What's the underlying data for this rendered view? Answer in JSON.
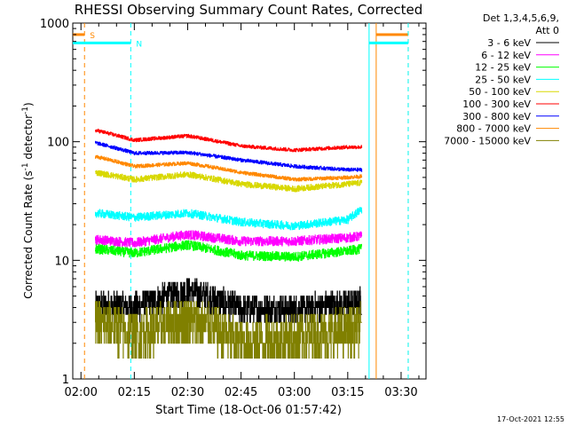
{
  "chart_data": {
    "type": "line",
    "title": "RHESSI Observing Summary Count Rates, Corrected",
    "xlabel": "Start Time (18-Oct-06 01:57:42)",
    "ylabel_main": "Corrected Count Rate (s",
    "ylabel_sup1": "-1",
    "ylabel_mid": " detector",
    "ylabel_sup2": "-1",
    "ylabel_end": ")",
    "y_scale": "log",
    "ylim": [
      1,
      1000
    ],
    "xlim": [
      "01:57:42",
      "03:37:00"
    ],
    "x_ticks": [
      "02:00",
      "02:15",
      "02:30",
      "02:45",
      "03:00",
      "03:15",
      "03:30"
    ],
    "y_ticks": [
      "1",
      "10",
      "100",
      "1000"
    ],
    "legend_header": [
      "Det 1,3,4,5,6,9,",
      "Att 0"
    ],
    "legend_position": "right",
    "series": [
      {
        "name": "3 - 6 keV",
        "color": "#000000",
        "level": 4.3,
        "noise": 0.12,
        "profile": [
          [
            "02:04",
            4.2
          ],
          [
            "02:15",
            4.0
          ],
          [
            "02:30",
            5.5
          ],
          [
            "02:45",
            3.9
          ],
          [
            "03:00",
            3.9
          ],
          [
            "03:15",
            4.3
          ],
          [
            "03:19",
            4.5
          ]
        ]
      },
      {
        "name": "6 - 12 keV",
        "color": "#ff00ff",
        "level": 15,
        "noise": 0.04,
        "profile": [
          [
            "02:04",
            15
          ],
          [
            "02:15",
            14
          ],
          [
            "02:30",
            16.5
          ],
          [
            "02:45",
            14.5
          ],
          [
            "03:00",
            14.5
          ],
          [
            "03:15",
            15.5
          ],
          [
            "03:19",
            16
          ]
        ]
      },
      {
        "name": "12 - 25 keV",
        "color": "#00ff00",
        "level": 12,
        "noise": 0.04,
        "profile": [
          [
            "02:04",
            12.5
          ],
          [
            "02:15",
            11.5
          ],
          [
            "02:30",
            13.5
          ],
          [
            "02:45",
            11
          ],
          [
            "03:00",
            10.7
          ],
          [
            "03:15",
            12
          ],
          [
            "03:19",
            12.5
          ]
        ]
      },
      {
        "name": "25 - 50 keV",
        "color": "#00ffff",
        "level": 24,
        "noise": 0.035,
        "profile": [
          [
            "02:04",
            25
          ],
          [
            "02:15",
            23
          ],
          [
            "02:30",
            25
          ],
          [
            "02:45",
            21
          ],
          [
            "03:00",
            19.5
          ],
          [
            "03:15",
            22
          ],
          [
            "03:19",
            27
          ]
        ]
      },
      {
        "name": "50 - 100 keV",
        "color": "#d8d800",
        "level": 48,
        "noise": 0.025,
        "profile": [
          [
            "02:04",
            55
          ],
          [
            "02:15",
            48
          ],
          [
            "02:30",
            53
          ],
          [
            "02:45",
            44
          ],
          [
            "03:00",
            40
          ],
          [
            "03:15",
            44
          ],
          [
            "03:19",
            45
          ]
        ]
      },
      {
        "name": "100 - 300 keV",
        "color": "#ff0000",
        "level": 100,
        "noise": 0.015,
        "profile": [
          [
            "02:04",
            125
          ],
          [
            "02:15",
            103
          ],
          [
            "02:30",
            112
          ],
          [
            "02:45",
            92
          ],
          [
            "03:00",
            85
          ],
          [
            "03:15",
            90
          ],
          [
            "03:19",
            90
          ]
        ]
      },
      {
        "name": "300 - 800 keV",
        "color": "#0000ff",
        "level": 75,
        "noise": 0.015,
        "profile": [
          [
            "02:04",
            98
          ],
          [
            "02:15",
            80
          ],
          [
            "02:30",
            81
          ],
          [
            "02:45",
            70
          ],
          [
            "03:00",
            62
          ],
          [
            "03:15",
            58
          ],
          [
            "03:19",
            58
          ]
        ]
      },
      {
        "name": "800 - 7000 keV",
        "color": "#ff8800",
        "level": 60,
        "noise": 0.015,
        "profile": [
          [
            "02:04",
            75
          ],
          [
            "02:15",
            62
          ],
          [
            "02:30",
            66
          ],
          [
            "02:45",
            55
          ],
          [
            "03:00",
            48
          ],
          [
            "03:15",
            50
          ],
          [
            "03:19",
            51
          ]
        ]
      },
      {
        "name": "7000 - 15000 keV",
        "color": "#808000",
        "level": 2.5,
        "noise": 0.2,
        "profile": [
          [
            "02:04",
            3.0
          ],
          [
            "02:15",
            2.3
          ],
          [
            "02:30",
            3.2
          ],
          [
            "02:45",
            2.0
          ],
          [
            "03:00",
            2.2
          ],
          [
            "03:15",
            2.5
          ],
          [
            "03:19",
            2.8
          ]
        ]
      }
    ],
    "markers": [
      {
        "kind": "S",
        "label": "S",
        "color": "#ff8800",
        "vlines": [
          "02:01",
          "03:23",
          "03:32"
        ],
        "dashed": [
          true,
          false,
          true
        ],
        "bars": [
          [
            "01:57:42",
            "02:01"
          ],
          [
            "03:23",
            "03:32"
          ]
        ],
        "level": 800
      },
      {
        "kind": "N",
        "label": "N",
        "color": "#00ffff",
        "vlines": [
          "02:14",
          "03:21",
          "03:32"
        ],
        "dashed": [
          true,
          false,
          true
        ],
        "bars": [
          [
            "01:57:42",
            "02:14"
          ],
          [
            "03:21",
            "03:32"
          ]
        ],
        "level": 680
      }
    ],
    "footer_timestamp": "17-Oct-2021 12:55"
  }
}
